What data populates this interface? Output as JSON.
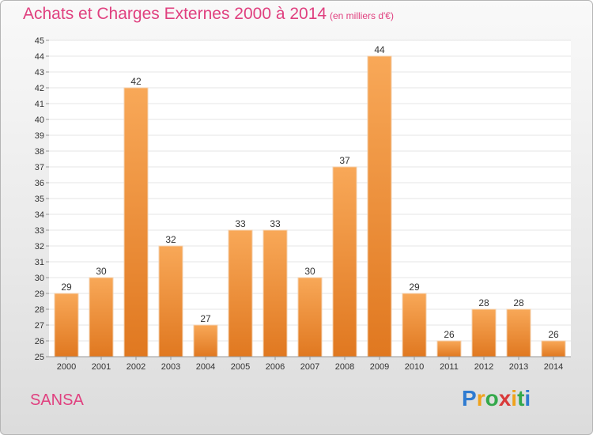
{
  "header": {
    "title": "Achats et Charges Externes 2000 à 2014",
    "unit": "(en milliers d'€)"
  },
  "footer": {
    "commune": "SANSA",
    "logo_text": "Proxiti"
  },
  "colors": {
    "bar_top": "#f8a858",
    "bar_bottom": "#e07820",
    "title": "#e0407f"
  },
  "chart_data": {
    "type": "bar",
    "title": "Achats et Charges Externes 2000 à 2014",
    "subtitle": "(en milliers d'€)",
    "xlabel": "",
    "ylabel": "",
    "categories": [
      "2000",
      "2001",
      "2002",
      "2003",
      "2004",
      "2005",
      "2006",
      "2007",
      "2008",
      "2009",
      "2010",
      "2011",
      "2012",
      "2013",
      "2014"
    ],
    "values": [
      29,
      30,
      42,
      32,
      27,
      33,
      33,
      30,
      37,
      44,
      29,
      26,
      28,
      28,
      26
    ],
    "ylim": [
      25,
      45
    ],
    "yticks": [
      25,
      26,
      27,
      28,
      29,
      30,
      31,
      32,
      33,
      34,
      35,
      36,
      37,
      38,
      39,
      40,
      41,
      42,
      43,
      44,
      45
    ],
    "grid": true,
    "data_labels": true
  }
}
